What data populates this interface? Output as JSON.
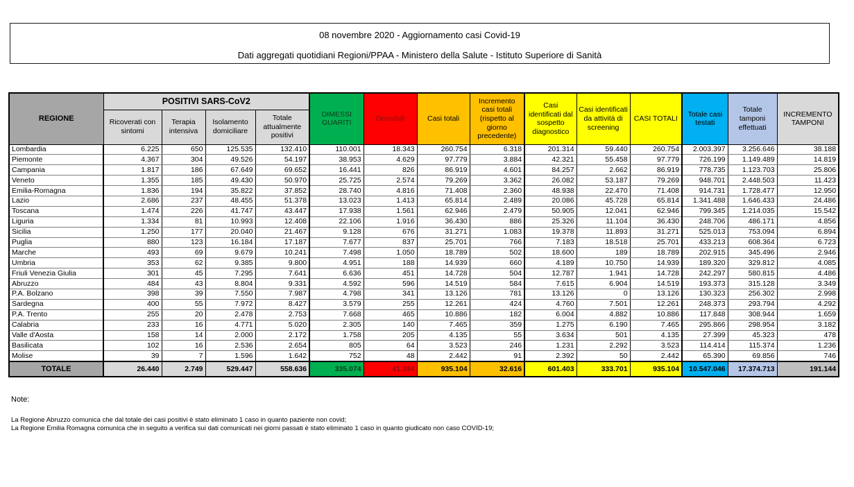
{
  "title": {
    "line1": "08 novembre 2020 - Aggiornamento casi Covid-19",
    "line2": "Dati aggregati quotidiani Regioni/PPAA - Ministero della Salute - Istituto Superiore di Sanità"
  },
  "table": {
    "region_header": "REGIONE",
    "group_header": "POSITIVI SARS-CoV2",
    "sub_headers": [
      "Ricoverati con sintomi",
      "Terapia intensiva",
      "Isolamento domiciliare",
      "Totale attualmente positivi"
    ],
    "col_headers": [
      "DIMESSI GUARITI",
      "Deceduti",
      "Casi totali",
      "Incremento casi totali (rispetto al giorno precedente)",
      "Casi identificati dal sospetto diagnostico",
      "Casi identificati da attività di screening",
      "CASI TOTALI",
      "Totale casi testati",
      "Totale tamponi effettuati",
      "INCREMENTO TAMPONI"
    ],
    "col_keys": [
      "ricoverati-con-sintomi",
      "terapia-intensiva",
      "isolamento-domiciliare",
      "totale-attualmente-positivi",
      "dimessi-guariti",
      "deceduti",
      "casi-totali",
      "incremento-casi-totali",
      "casi-sospetto-diagnostico",
      "casi-attivita-screening",
      "casi-totali-riepilogo",
      "totale-casi-testati",
      "totale-tamponi-effettuati",
      "incremento-tamponi"
    ],
    "rows": [
      {
        "region": "Lombardia",
        "values": [
          "6.225",
          "650",
          "125.535",
          "132.410",
          "110.001",
          "18.343",
          "260.754",
          "6.318",
          "201.314",
          "59.440",
          "260.754",
          "2.003.397",
          "3.256.646",
          "38.188"
        ]
      },
      {
        "region": "Piemonte",
        "values": [
          "4.367",
          "304",
          "49.526",
          "54.197",
          "38.953",
          "4.629",
          "97.779",
          "3.884",
          "42.321",
          "55.458",
          "97.779",
          "726.199",
          "1.149.489",
          "14.819"
        ]
      },
      {
        "region": "Campania",
        "values": [
          "1.817",
          "186",
          "67.649",
          "69.652",
          "16.441",
          "826",
          "86.919",
          "4.601",
          "84.257",
          "2.662",
          "86.919",
          "778.735",
          "1.123.703",
          "25.806"
        ]
      },
      {
        "region": "Veneto",
        "values": [
          "1.355",
          "185",
          "49.430",
          "50.970",
          "25.725",
          "2.574",
          "79.269",
          "3.362",
          "26.082",
          "53.187",
          "79.269",
          "948.701",
          "2.448.503",
          "11.423"
        ]
      },
      {
        "region": "Emilia-Romagna",
        "values": [
          "1.836",
          "194",
          "35.822",
          "37.852",
          "28.740",
          "4.816",
          "71.408",
          "2.360",
          "48.938",
          "22.470",
          "71.408",
          "914.731",
          "1.728.477",
          "12.950"
        ]
      },
      {
        "region": "Lazio",
        "values": [
          "2.686",
          "237",
          "48.455",
          "51.378",
          "13.023",
          "1.413",
          "65.814",
          "2.489",
          "20.086",
          "45.728",
          "65.814",
          "1.341.488",
          "1.646.433",
          "24.486"
        ]
      },
      {
        "region": "Toscana",
        "values": [
          "1.474",
          "226",
          "41.747",
          "43.447",
          "17.938",
          "1.561",
          "62.946",
          "2.479",
          "50.905",
          "12.041",
          "62.946",
          "799.345",
          "1.214.035",
          "15.542"
        ]
      },
      {
        "region": "Liguria",
        "values": [
          "1.334",
          "81",
          "10.993",
          "12.408",
          "22.106",
          "1.916",
          "36.430",
          "886",
          "25.326",
          "11.104",
          "36.430",
          "248.706",
          "486.171",
          "4.856"
        ]
      },
      {
        "region": "Sicilia",
        "values": [
          "1.250",
          "177",
          "20.040",
          "21.467",
          "9.128",
          "676",
          "31.271",
          "1.083",
          "19.378",
          "11.893",
          "31.271",
          "525.013",
          "753.094",
          "6.894"
        ]
      },
      {
        "region": "Puglia",
        "values": [
          "880",
          "123",
          "16.184",
          "17.187",
          "7.677",
          "837",
          "25.701",
          "766",
          "7.183",
          "18.518",
          "25.701",
          "433.213",
          "608.364",
          "6.723"
        ]
      },
      {
        "region": "Marche",
        "values": [
          "493",
          "69",
          "9.679",
          "10.241",
          "7.498",
          "1.050",
          "18.789",
          "502",
          "18.600",
          "189",
          "18.789",
          "202.915",
          "345.496",
          "2.946"
        ]
      },
      {
        "region": "Umbria",
        "values": [
          "353",
          "62",
          "9.385",
          "9.800",
          "4.951",
          "188",
          "14.939",
          "660",
          "4.189",
          "10.750",
          "14.939",
          "189.320",
          "329.812",
          "4.085"
        ]
      },
      {
        "region": "Friuli Venezia Giulia",
        "values": [
          "301",
          "45",
          "7.295",
          "7.641",
          "6.636",
          "451",
          "14.728",
          "504",
          "12.787",
          "1.941",
          "14.728",
          "242.297",
          "580.815",
          "4.486"
        ]
      },
      {
        "region": "Abruzzo",
        "values": [
          "484",
          "43",
          "8.804",
          "9.331",
          "4.592",
          "596",
          "14.519",
          "584",
          "7.615",
          "6.904",
          "14.519",
          "193.373",
          "315.128",
          "3.349"
        ]
      },
      {
        "region": "P.A. Bolzano",
        "values": [
          "398",
          "39",
          "7.550",
          "7.987",
          "4.798",
          "341",
          "13.126",
          "781",
          "13.126",
          "0",
          "13.126",
          "130.323",
          "256.302",
          "2.998"
        ]
      },
      {
        "region": "Sardegna",
        "values": [
          "400",
          "55",
          "7.972",
          "8.427",
          "3.579",
          "255",
          "12.261",
          "424",
          "4.760",
          "7.501",
          "12.261",
          "248.373",
          "293.794",
          "4.292"
        ]
      },
      {
        "region": "P.A. Trento",
        "values": [
          "255",
          "20",
          "2.478",
          "2.753",
          "7.668",
          "465",
          "10.886",
          "182",
          "6.004",
          "4.882",
          "10.886",
          "117.848",
          "308.944",
          "1.659"
        ]
      },
      {
        "region": "Calabria",
        "values": [
          "233",
          "16",
          "4.771",
          "5.020",
          "2.305",
          "140",
          "7.465",
          "359",
          "1.275",
          "6.190",
          "7.465",
          "295.866",
          "298.954",
          "3.182"
        ]
      },
      {
        "region": "Valle d'Aosta",
        "values": [
          "158",
          "14",
          "2.000",
          "2.172",
          "1.758",
          "205",
          "4.135",
          "55",
          "3.634",
          "501",
          "4.135",
          "27.399",
          "45.323",
          "478"
        ]
      },
      {
        "region": "Basilicata",
        "values": [
          "102",
          "16",
          "2.536",
          "2.654",
          "805",
          "64",
          "3.523",
          "246",
          "1.231",
          "2.292",
          "3.523",
          "114.414",
          "115.374",
          "1.236"
        ]
      },
      {
        "region": "Molise",
        "values": [
          "39",
          "7",
          "1.596",
          "1.642",
          "752",
          "48",
          "2.442",
          "91",
          "2.392",
          "50",
          "2.442",
          "65.390",
          "69.856",
          "746"
        ]
      }
    ],
    "total": {
      "label": "TOTALE",
      "values": [
        "26.440",
        "2.749",
        "529.447",
        "558.636",
        "335.074",
        "41.394",
        "935.104",
        "32.616",
        "601.403",
        "333.701",
        "935.104",
        "10.547.046",
        "17.374.713",
        "191.144"
      ]
    }
  },
  "notes": {
    "heading": "Note:",
    "lines": [
      "La Regione Abruzzo comunica che dal totale dei casi positivi è stato eliminato 1 caso in quanto paziente non covid;",
      "La Regione Emilia Romagna comunica che in seguito a verifica sui dati comunicati nei giorni passati è stato eliminato 1 caso in quanto giudicato non caso COVID-19;"
    ]
  },
  "colors": {
    "header_gray": "#A6A6A6",
    "light_gray": "#D9D9D9",
    "green": "#00B050",
    "red": "#FF0000",
    "orange": "#FFC000",
    "yellow": "#FFFF00",
    "blue": "#00B0F0",
    "lavender": "#B4C6E7",
    "total_incremento_gray": "#BFBFBF",
    "deceduti_text": "#7B1416",
    "dimessi_text": "#11381d"
  }
}
